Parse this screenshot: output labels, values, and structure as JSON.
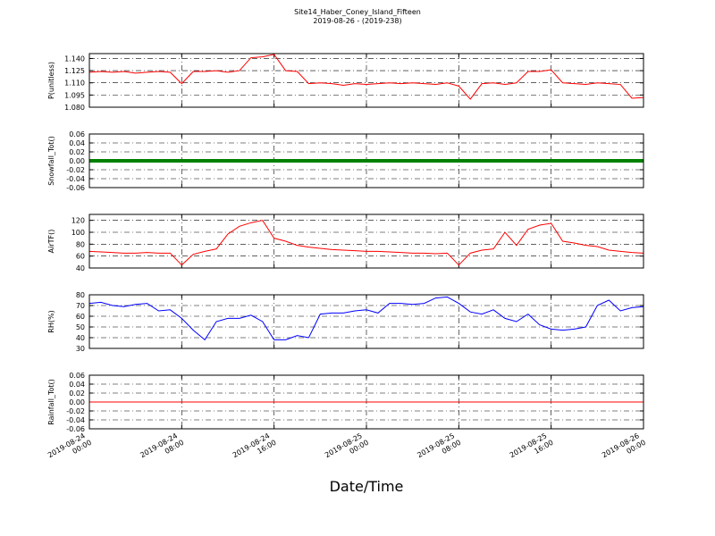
{
  "chart_data": [
    {
      "type": "line",
      "title": "Site14_Haber_Coney_Island_Fifteen",
      "subtitle": "2019-08-26 - (2019-238)",
      "ylabel": "P(unitless)",
      "x": [
        "2019-08-24 00:00",
        "2019-08-24 01:00",
        "2019-08-24 02:00",
        "2019-08-24 03:00",
        "2019-08-24 04:00",
        "2019-08-24 05:00",
        "2019-08-24 06:00",
        "2019-08-24 07:00",
        "2019-08-24 08:00",
        "2019-08-24 09:00",
        "2019-08-24 10:00",
        "2019-08-24 11:00",
        "2019-08-24 12:00",
        "2019-08-24 13:00",
        "2019-08-24 14:00",
        "2019-08-24 15:00",
        "2019-08-24 16:00",
        "2019-08-24 17:00",
        "2019-08-24 18:00",
        "2019-08-24 19:00",
        "2019-08-24 20:00",
        "2019-08-24 21:00",
        "2019-08-24 22:00",
        "2019-08-24 23:00",
        "2019-08-25 00:00",
        "2019-08-25 01:00",
        "2019-08-25 02:00",
        "2019-08-25 03:00",
        "2019-08-25 04:00",
        "2019-08-25 05:00",
        "2019-08-25 06:00",
        "2019-08-25 07:00",
        "2019-08-25 08:00",
        "2019-08-25 09:00",
        "2019-08-25 10:00",
        "2019-08-25 11:00",
        "2019-08-25 12:00",
        "2019-08-25 13:00",
        "2019-08-25 14:00",
        "2019-08-25 15:00",
        "2019-08-25 16:00",
        "2019-08-25 17:00",
        "2019-08-25 18:00",
        "2019-08-25 19:00",
        "2019-08-25 20:00",
        "2019-08-25 21:00",
        "2019-08-25 22:00",
        "2019-08-25 23:00",
        "2019-08-26 00:00"
      ],
      "series": [
        {
          "name": "P",
          "color": "#ff0000",
          "linewidth": 1,
          "values": [
            1.123,
            1.124,
            1.123,
            1.124,
            1.122,
            1.123,
            1.124,
            1.123,
            1.109,
            1.124,
            1.124,
            1.125,
            1.123,
            1.125,
            1.141,
            1.142,
            1.145,
            1.125,
            1.124,
            1.109,
            1.11,
            1.109,
            1.107,
            1.109,
            1.108,
            1.109,
            1.11,
            1.109,
            1.11,
            1.109,
            1.108,
            1.11,
            1.106,
            1.09,
            1.109,
            1.11,
            1.108,
            1.11,
            1.124,
            1.124,
            1.126,
            1.11,
            1.109,
            1.108,
            1.11,
            1.109,
            1.108,
            1.091,
            1.092
          ]
        }
      ],
      "ylim": [
        1.08,
        1.146
      ],
      "yticks": [
        {
          "value": 1.08,
          "label": "1.080"
        },
        {
          "value": 1.095,
          "label": "1.095"
        },
        {
          "value": 1.11,
          "label": "1.110"
        },
        {
          "value": 1.125,
          "label": "1.125"
        },
        {
          "value": 1.14,
          "label": "1.140"
        }
      ],
      "grid": true
    },
    {
      "type": "line",
      "ylabel": "Snowfall_Tot()",
      "x": [
        "2019-08-24 00:00",
        "2019-08-24 01:00",
        "2019-08-24 02:00",
        "2019-08-24 03:00",
        "2019-08-24 04:00",
        "2019-08-24 05:00",
        "2019-08-24 06:00",
        "2019-08-24 07:00",
        "2019-08-24 08:00",
        "2019-08-24 09:00",
        "2019-08-24 10:00",
        "2019-08-24 11:00",
        "2019-08-24 12:00",
        "2019-08-24 13:00",
        "2019-08-24 14:00",
        "2019-08-24 15:00",
        "2019-08-24 16:00",
        "2019-08-24 17:00",
        "2019-08-24 18:00",
        "2019-08-24 19:00",
        "2019-08-24 20:00",
        "2019-08-24 21:00",
        "2019-08-24 22:00",
        "2019-08-24 23:00",
        "2019-08-25 00:00",
        "2019-08-25 01:00",
        "2019-08-25 02:00",
        "2019-08-25 03:00",
        "2019-08-25 04:00",
        "2019-08-25 05:00",
        "2019-08-25 06:00",
        "2019-08-25 07:00",
        "2019-08-25 08:00",
        "2019-08-25 09:00",
        "2019-08-25 10:00",
        "2019-08-25 11:00",
        "2019-08-25 12:00",
        "2019-08-25 13:00",
        "2019-08-25 14:00",
        "2019-08-25 15:00",
        "2019-08-25 16:00",
        "2019-08-25 17:00",
        "2019-08-25 18:00",
        "2019-08-25 19:00",
        "2019-08-25 20:00",
        "2019-08-25 21:00",
        "2019-08-25 22:00",
        "2019-08-25 23:00",
        "2019-08-26 00:00"
      ],
      "series": [
        {
          "name": "Snowfall_Tot",
          "color": "#008000",
          "linewidth": 4,
          "values": [
            0,
            0,
            0,
            0,
            0,
            0,
            0,
            0,
            0,
            0,
            0,
            0,
            0,
            0,
            0,
            0,
            0,
            0,
            0,
            0,
            0,
            0,
            0,
            0,
            0,
            0,
            0,
            0,
            0,
            0,
            0,
            0,
            0,
            0,
            0,
            0,
            0,
            0,
            0,
            0,
            0,
            0,
            0,
            0,
            0,
            0,
            0,
            0,
            0
          ]
        }
      ],
      "ylim": [
        -0.06,
        0.06
      ],
      "yticks": [
        -0.06,
        -0.04,
        -0.02,
        {
          "value": 0,
          "label": "0.00"
        },
        0.02,
        0.04,
        0.06
      ],
      "grid": true
    },
    {
      "type": "line",
      "ylabel": "AirTF()",
      "x": [
        "2019-08-24 00:00",
        "2019-08-24 01:00",
        "2019-08-24 02:00",
        "2019-08-24 03:00",
        "2019-08-24 04:00",
        "2019-08-24 05:00",
        "2019-08-24 06:00",
        "2019-08-24 07:00",
        "2019-08-24 08:00",
        "2019-08-24 09:00",
        "2019-08-24 10:00",
        "2019-08-24 11:00",
        "2019-08-24 12:00",
        "2019-08-24 13:00",
        "2019-08-24 14:00",
        "2019-08-24 15:00",
        "2019-08-24 16:00",
        "2019-08-24 17:00",
        "2019-08-24 18:00",
        "2019-08-24 19:00",
        "2019-08-24 20:00",
        "2019-08-24 21:00",
        "2019-08-24 22:00",
        "2019-08-24 23:00",
        "2019-08-25 00:00",
        "2019-08-25 01:00",
        "2019-08-25 02:00",
        "2019-08-25 03:00",
        "2019-08-25 04:00",
        "2019-08-25 05:00",
        "2019-08-25 06:00",
        "2019-08-25 07:00",
        "2019-08-25 08:00",
        "2019-08-25 09:00",
        "2019-08-25 10:00",
        "2019-08-25 11:00",
        "2019-08-25 12:00",
        "2019-08-25 13:00",
        "2019-08-25 14:00",
        "2019-08-25 15:00",
        "2019-08-25 16:00",
        "2019-08-25 17:00",
        "2019-08-25 18:00",
        "2019-08-25 19:00",
        "2019-08-25 20:00",
        "2019-08-25 21:00",
        "2019-08-25 22:00",
        "2019-08-25 23:00",
        "2019-08-26 00:00"
      ],
      "series": [
        {
          "name": "AirTF",
          "color": "#ff0000",
          "linewidth": 1,
          "values": [
            68,
            67,
            66,
            65,
            65,
            66,
            65,
            65,
            45,
            63,
            68,
            72,
            97,
            110,
            116,
            120,
            90,
            85,
            78,
            75,
            73,
            71,
            70,
            69,
            68,
            68,
            67,
            66,
            65,
            65,
            64,
            65,
            45,
            65,
            70,
            72,
            100,
            78,
            105,
            112,
            115,
            85,
            82,
            78,
            76,
            70,
            68,
            66,
            65
          ]
        }
      ],
      "ylim": [
        40,
        130
      ],
      "yticks": [
        40,
        60,
        80,
        100,
        120
      ],
      "grid": true
    },
    {
      "type": "line",
      "ylabel": "RH(%)",
      "x": [
        "2019-08-24 00:00",
        "2019-08-24 01:00",
        "2019-08-24 02:00",
        "2019-08-24 03:00",
        "2019-08-24 04:00",
        "2019-08-24 05:00",
        "2019-08-24 06:00",
        "2019-08-24 07:00",
        "2019-08-24 08:00",
        "2019-08-24 09:00",
        "2019-08-24 10:00",
        "2019-08-24 11:00",
        "2019-08-24 12:00",
        "2019-08-24 13:00",
        "2019-08-24 14:00",
        "2019-08-24 15:00",
        "2019-08-24 16:00",
        "2019-08-24 17:00",
        "2019-08-24 18:00",
        "2019-08-24 19:00",
        "2019-08-24 20:00",
        "2019-08-24 21:00",
        "2019-08-24 22:00",
        "2019-08-24 23:00",
        "2019-08-25 00:00",
        "2019-08-25 01:00",
        "2019-08-25 02:00",
        "2019-08-25 03:00",
        "2019-08-25 04:00",
        "2019-08-25 05:00",
        "2019-08-25 06:00",
        "2019-08-25 07:00",
        "2019-08-25 08:00",
        "2019-08-25 09:00",
        "2019-08-25 10:00",
        "2019-08-25 11:00",
        "2019-08-25 12:00",
        "2019-08-25 13:00",
        "2019-08-25 14:00",
        "2019-08-25 15:00",
        "2019-08-25 16:00",
        "2019-08-25 17:00",
        "2019-08-25 18:00",
        "2019-08-25 19:00",
        "2019-08-25 20:00",
        "2019-08-25 21:00",
        "2019-08-25 22:00",
        "2019-08-25 23:00",
        "2019-08-26 00:00"
      ],
      "series": [
        {
          "name": "RH",
          "color": "#0000ff",
          "linewidth": 1,
          "values": [
            72,
            73,
            70,
            69,
            71,
            72,
            65,
            66,
            58,
            47,
            38,
            55,
            58,
            58,
            61,
            55,
            38,
            38,
            42,
            40,
            62,
            63,
            63,
            65,
            66,
            63,
            72,
            72,
            71,
            72,
            77,
            78,
            72,
            64,
            62,
            66,
            58,
            55,
            62,
            52,
            48,
            47,
            48,
            50,
            70,
            75,
            65,
            68,
            69
          ]
        }
      ],
      "ylim": [
        30,
        80
      ],
      "yticks": [
        30,
        40,
        50,
        60,
        70,
        80
      ],
      "grid": true
    },
    {
      "type": "line",
      "ylabel": "Rainfall_Tot()",
      "xlabel": "Date/Time",
      "x": [
        "2019-08-24 00:00",
        "2019-08-24 01:00",
        "2019-08-24 02:00",
        "2019-08-24 03:00",
        "2019-08-24 04:00",
        "2019-08-24 05:00",
        "2019-08-24 06:00",
        "2019-08-24 07:00",
        "2019-08-24 08:00",
        "2019-08-24 09:00",
        "2019-08-24 10:00",
        "2019-08-24 11:00",
        "2019-08-24 12:00",
        "2019-08-24 13:00",
        "2019-08-24 14:00",
        "2019-08-24 15:00",
        "2019-08-24 16:00",
        "2019-08-24 17:00",
        "2019-08-24 18:00",
        "2019-08-24 19:00",
        "2019-08-24 20:00",
        "2019-08-24 21:00",
        "2019-08-24 22:00",
        "2019-08-24 23:00",
        "2019-08-25 00:00",
        "2019-08-25 01:00",
        "2019-08-25 02:00",
        "2019-08-25 03:00",
        "2019-08-25 04:00",
        "2019-08-25 05:00",
        "2019-08-25 06:00",
        "2019-08-25 07:00",
        "2019-08-25 08:00",
        "2019-08-25 09:00",
        "2019-08-25 10:00",
        "2019-08-25 11:00",
        "2019-08-25 12:00",
        "2019-08-25 13:00",
        "2019-08-25 14:00",
        "2019-08-25 15:00",
        "2019-08-25 16:00",
        "2019-08-25 17:00",
        "2019-08-25 18:00",
        "2019-08-25 19:00",
        "2019-08-25 20:00",
        "2019-08-25 21:00",
        "2019-08-25 22:00",
        "2019-08-25 23:00",
        "2019-08-26 00:00"
      ],
      "series": [
        {
          "name": "Rainfall_Tot",
          "color": "#ff0000",
          "linewidth": 1,
          "values": [
            0,
            0,
            0,
            0,
            0,
            0,
            0,
            0,
            0,
            0,
            0,
            0,
            0,
            0,
            0,
            0,
            0,
            0,
            0,
            0,
            0,
            0,
            0,
            0,
            0,
            0,
            0,
            0,
            0,
            0,
            0,
            0,
            0,
            0,
            0,
            0,
            0,
            0,
            0,
            0,
            0,
            0,
            0,
            0,
            0,
            0,
            0,
            0,
            0
          ]
        }
      ],
      "ylim": [
        -0.06,
        0.06
      ],
      "yticks": [
        -0.06,
        -0.04,
        -0.02,
        {
          "value": 0,
          "label": "0.00"
        },
        0.02,
        0.04,
        0.06
      ],
      "grid": true,
      "xlim": [
        "2019-08-24 00:00",
        "2019-08-26 00:00"
      ],
      "xticks": [
        "2019-08-24 00:00",
        "2019-08-24 08:00",
        "2019-08-24 16:00",
        "2019-08-25 00:00",
        "2019-08-25 08:00",
        "2019-08-25 16:00",
        "2019-08-26 00:00"
      ]
    }
  ]
}
